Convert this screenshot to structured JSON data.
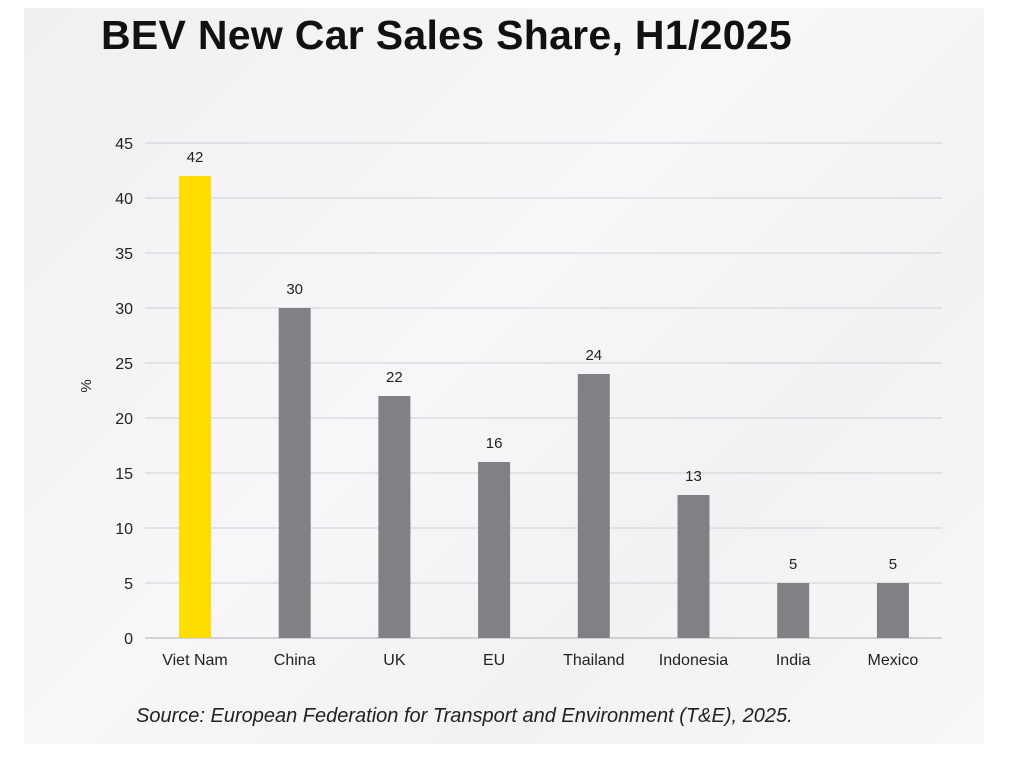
{
  "chart_data": {
    "type": "bar",
    "title": "BEV New Car Sales Share, H1/2025",
    "xlabel": "",
    "ylabel": "%",
    "ylim": [
      0,
      45
    ],
    "yticks": [
      0,
      5,
      10,
      15,
      20,
      25,
      30,
      35,
      40,
      45
    ],
    "grid": true,
    "categories": [
      "Viet Nam",
      "China",
      "UK",
      "EU",
      "Thailand",
      "Indonesia",
      "India",
      "Mexico"
    ],
    "values": [
      42,
      30,
      22,
      16,
      24,
      13,
      5,
      5
    ],
    "data_labels": [
      "42",
      "30",
      "22",
      "16",
      "24",
      "13",
      "5",
      "5"
    ],
    "highlight_category": "Viet Nam",
    "colors": {
      "highlight": "#FFDD00",
      "default": "#808184",
      "grid": "#d4d6d9",
      "axis": "#b9bbbe"
    },
    "source": "Source: European Federation for Transport and Environment (T&E), 2025."
  }
}
